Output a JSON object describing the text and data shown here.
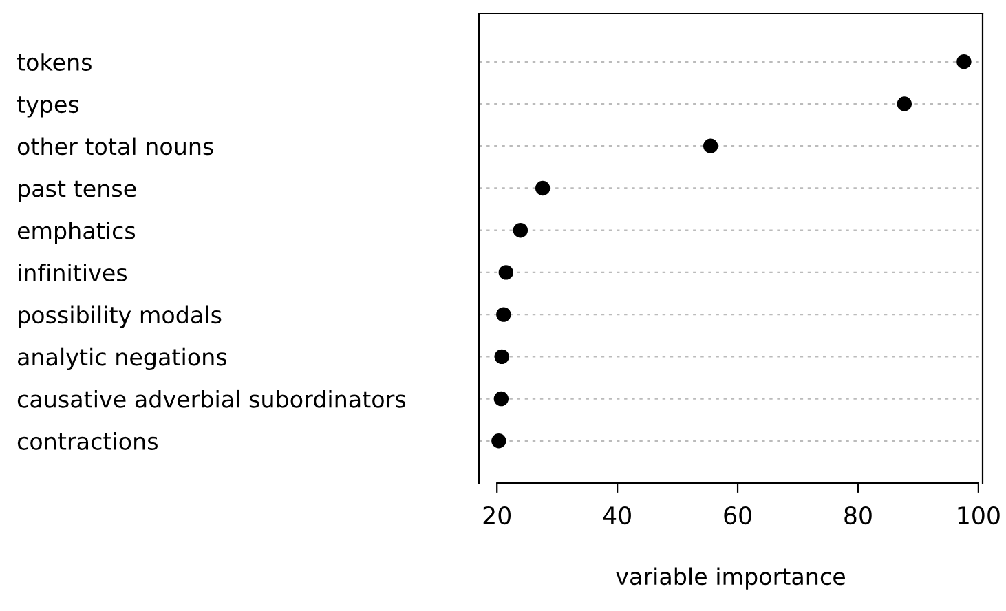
{
  "chart_data": {
    "type": "scatter",
    "xlabel": "variable importance",
    "categories": [
      "tokens",
      "types",
      "other total nouns",
      "past tense",
      "emphatics",
      "infinitives",
      "possibility modals",
      "analytic negations",
      "causative adverbial subordinators",
      "contractions"
    ],
    "values": [
      97.6,
      87.7,
      55.5,
      27.6,
      23.9,
      21.5,
      21.1,
      20.8,
      20.7,
      20.3
    ],
    "color": "#000000",
    "orientation": "horizontal",
    "marker": "circle",
    "grid": "y",
    "xlim": [
      17,
      100.7
    ],
    "xticks": [
      20,
      40,
      60,
      80,
      100
    ]
  }
}
